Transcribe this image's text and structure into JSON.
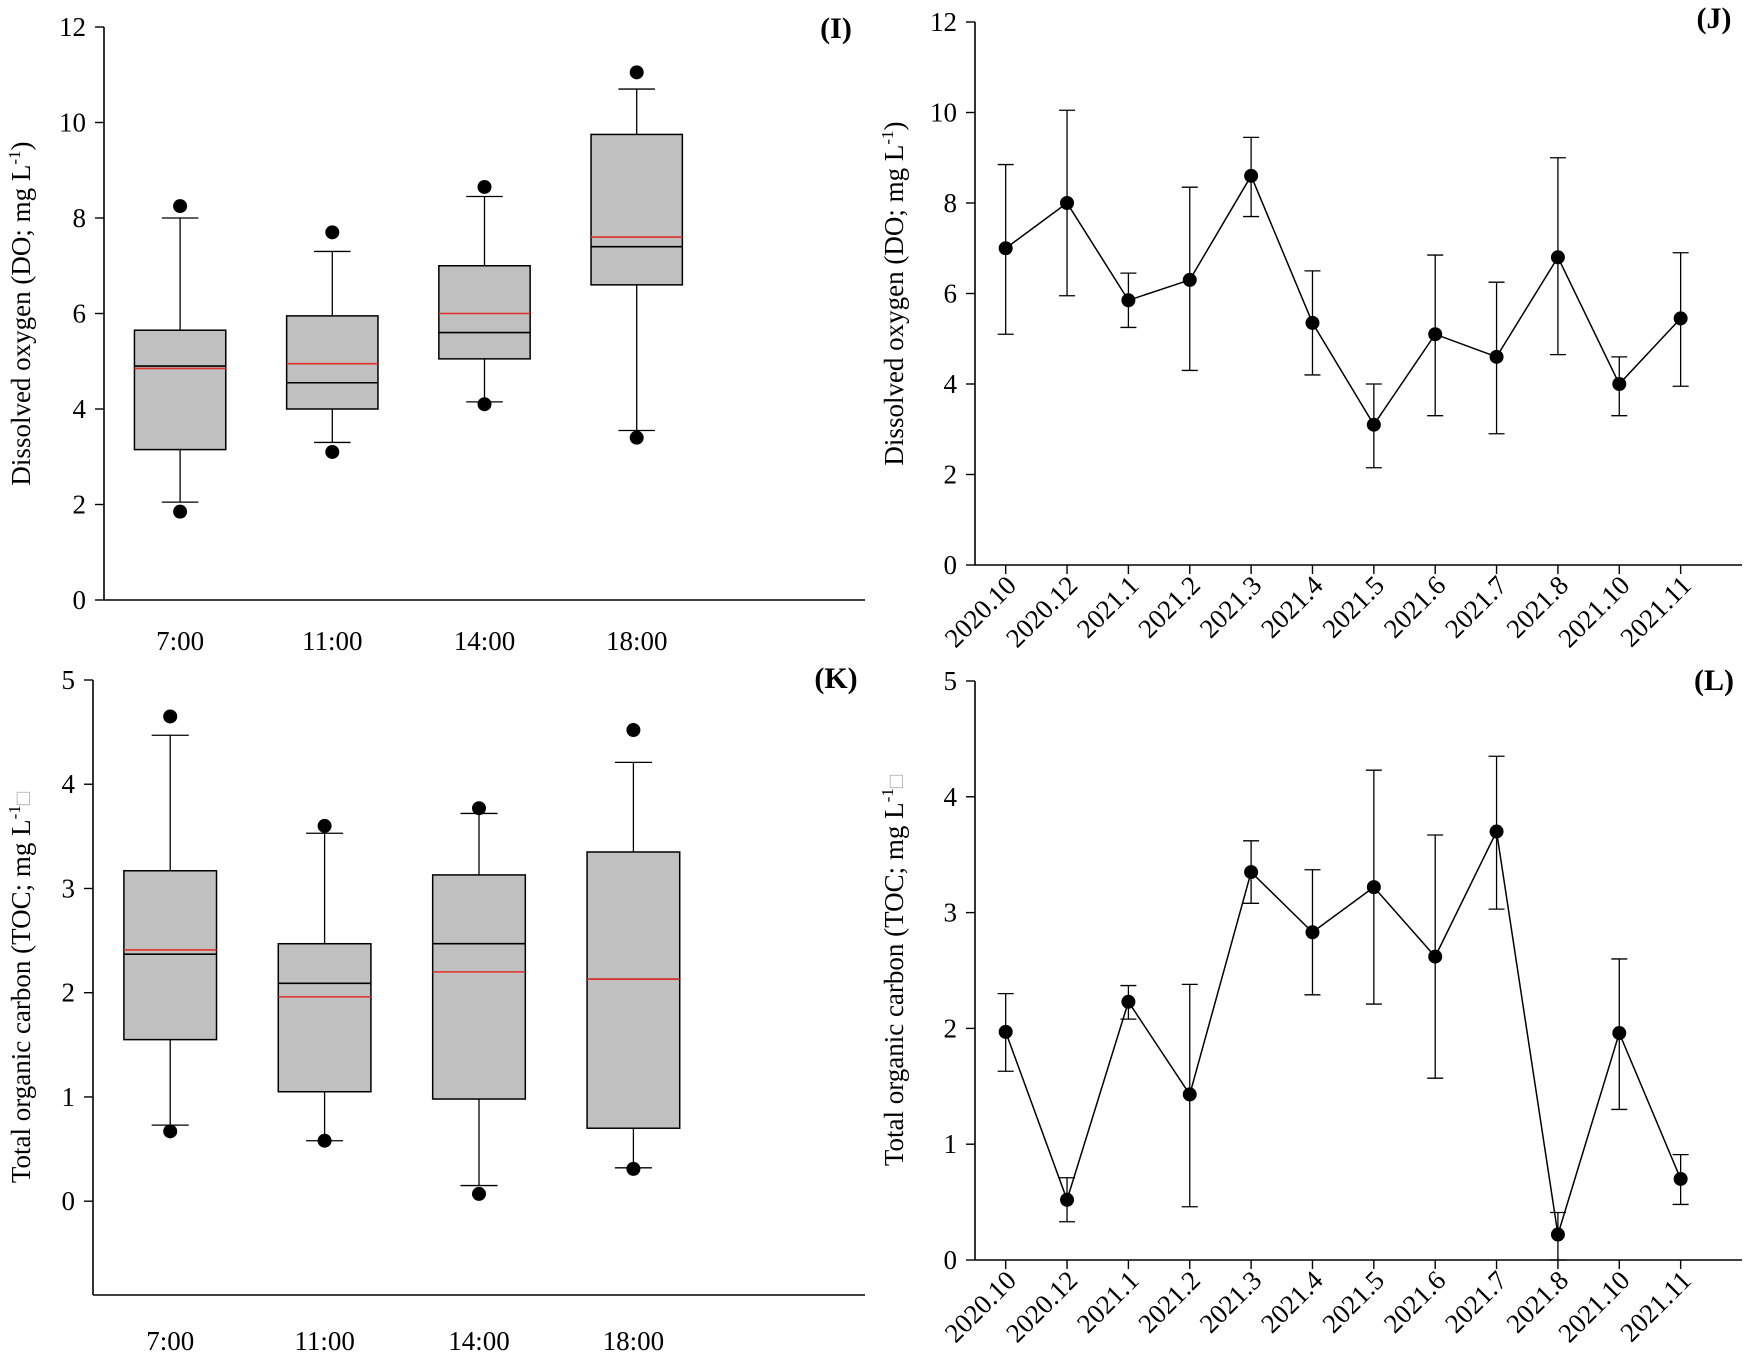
{
  "colors": {
    "box_fill": "#c0c0c0",
    "median_line": "#000000",
    "mean_line": "#e0302a",
    "line": "#000000",
    "marker": "#000000",
    "background": "#ffffff"
  },
  "chart_data": [
    {
      "panel": "(I)",
      "type": "box",
      "ylabel": "Dissolved oxygen (DO; mg L",
      "ylabel_sup": "-1",
      "ylabel_close": ")",
      "ylim": [
        0,
        12
      ],
      "yticks": [
        0,
        2,
        4,
        6,
        8,
        10,
        12
      ],
      "xlim": [
        0.5,
        5.5
      ],
      "categories": [
        "7:00",
        "11:00",
        "14:00",
        "18:00"
      ],
      "boxes": [
        {
          "q1": 3.15,
          "median": 4.9,
          "mean": 4.85,
          "q3": 5.65,
          "whisker_low": 2.05,
          "whisker_high": 8.0,
          "outliers": [
            1.85,
            8.25
          ]
        },
        {
          "q1": 4.0,
          "median": 4.55,
          "mean": 4.95,
          "q3": 5.95,
          "whisker_low": 3.3,
          "whisker_high": 7.3,
          "outliers": [
            3.1,
            7.7
          ]
        },
        {
          "q1": 5.05,
          "median": 5.6,
          "mean": 6.0,
          "q3": 7.0,
          "whisker_low": 4.15,
          "whisker_high": 8.45,
          "outliers": [
            4.1,
            8.65
          ]
        },
        {
          "q1": 6.6,
          "median": 7.4,
          "mean": 7.6,
          "q3": 9.75,
          "whisker_low": 3.55,
          "whisker_high": 10.7,
          "outliers": [
            3.4,
            11.05
          ]
        }
      ]
    },
    {
      "panel": "(J)",
      "type": "line",
      "ylabel": "Dissolved oxygen (DO; mg L",
      "ylabel_sup": "-1",
      "ylabel_close": ")",
      "ylim": [
        0,
        12
      ],
      "yticks": [
        0,
        2,
        4,
        6,
        8,
        10,
        12
      ],
      "categories": [
        "2020.10",
        "2020.12",
        "2021.1",
        "2021.2",
        "2021.3",
        "2021.4",
        "2021.5",
        "2021.6",
        "2021.7",
        "2021.8",
        "2021.10",
        "2021.11"
      ],
      "values": [
        7.0,
        8.0,
        5.85,
        6.3,
        8.6,
        5.35,
        3.1,
        5.1,
        4.6,
        6.8,
        4.0,
        5.45
      ],
      "err_low": [
        5.1,
        5.95,
        5.25,
        4.3,
        7.7,
        4.2,
        2.15,
        3.3,
        2.9,
        4.65,
        3.3,
        3.95
      ],
      "err_high": [
        8.85,
        10.05,
        6.45,
        8.35,
        9.45,
        6.5,
        4.0,
        6.85,
        6.25,
        9.0,
        4.6,
        6.9
      ]
    },
    {
      "panel": "(K)",
      "type": "box",
      "ylabel": "Total organic carbon (TOC; mg L",
      "ylabel_sup": "-1",
      "ylabel_close": "□",
      "ylim": [
        -0.9,
        5
      ],
      "yticks": [
        0,
        1,
        2,
        3,
        4,
        5
      ],
      "xlim": [
        0.5,
        5.5
      ],
      "categories": [
        "7:00",
        "11:00",
        "14:00",
        "18:00"
      ],
      "boxes": [
        {
          "q1": 1.55,
          "median": 2.37,
          "mean": 2.41,
          "q3": 3.17,
          "whisker_low": 0.73,
          "whisker_high": 4.47,
          "outliers": [
            0.67,
            4.65
          ]
        },
        {
          "q1": 1.05,
          "median": 2.09,
          "mean": 1.96,
          "q3": 2.47,
          "whisker_low": 0.58,
          "whisker_high": 3.53,
          "outliers": [
            0.58,
            3.6
          ]
        },
        {
          "q1": 0.98,
          "median": 2.47,
          "mean": 2.2,
          "q3": 3.13,
          "whisker_low": 0.15,
          "whisker_high": 3.72,
          "outliers": [
            0.07,
            3.77
          ]
        },
        {
          "q1": 0.7,
          "median": 2.13,
          "mean": 2.13,
          "q3": 3.35,
          "whisker_low": 0.32,
          "whisker_high": 4.21,
          "outliers": [
            0.31,
            4.52
          ]
        }
      ]
    },
    {
      "panel": "(L)",
      "type": "line",
      "ylabel": "Total organic carbon (TOC; mg L",
      "ylabel_sup": "-1",
      "ylabel_close": "□",
      "ylim": [
        0,
        5
      ],
      "yticks": [
        0,
        1,
        2,
        3,
        4,
        5
      ],
      "categories": [
        "2020.10",
        "2020.12",
        "2021.1",
        "2021.2",
        "2021.3",
        "2021.4",
        "2021.5",
        "2021.6",
        "2021.7",
        "2021.8",
        "2021.10",
        "2021.11"
      ],
      "values": [
        1.97,
        0.52,
        2.23,
        1.43,
        3.35,
        2.83,
        3.22,
        2.62,
        3.7,
        0.22,
        1.96,
        0.7
      ],
      "err_low": [
        1.63,
        0.33,
        2.08,
        0.46,
        3.08,
        2.29,
        2.21,
        1.57,
        3.03,
        0.0,
        1.3,
        0.48
      ],
      "err_high": [
        2.3,
        0.71,
        2.37,
        2.38,
        3.62,
        3.37,
        4.23,
        3.67,
        4.35,
        0.41,
        2.6,
        0.91
      ]
    }
  ]
}
